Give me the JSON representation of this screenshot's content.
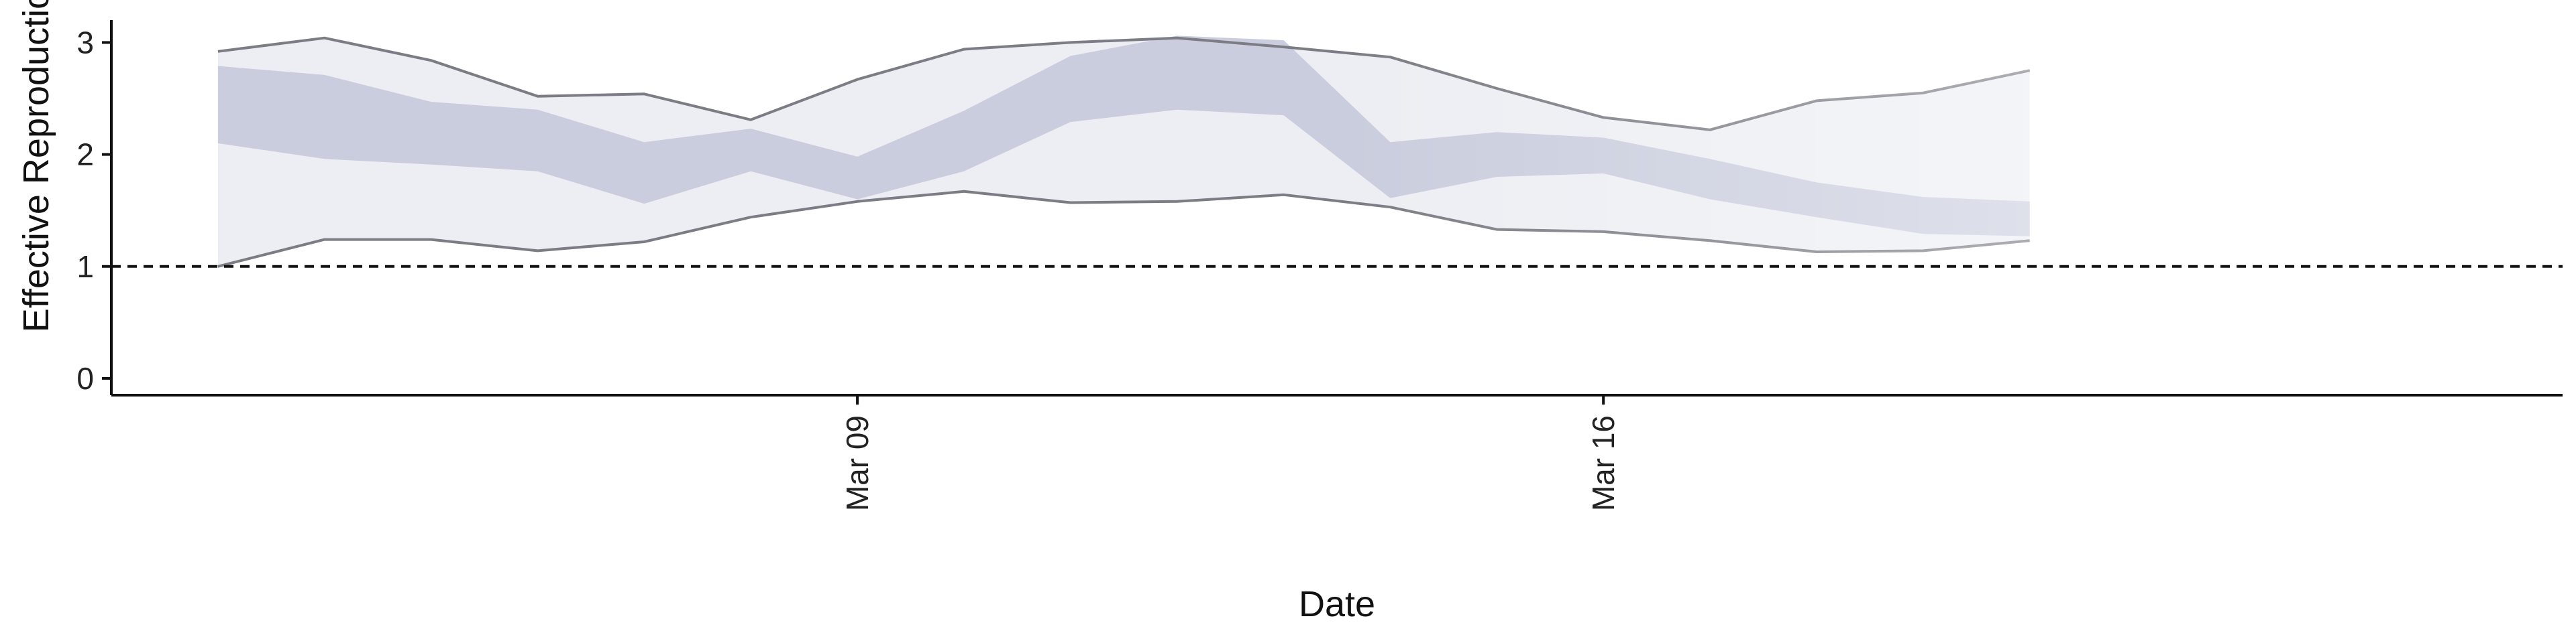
{
  "chart_data": {
    "type": "area",
    "xlabel": "Date",
    "ylabel": "Effective Reproduction no.",
    "ylim": [
      -0.15,
      3.2
    ],
    "y_ticks": [
      0,
      1,
      2,
      3
    ],
    "x_ticks": [
      {
        "date": "2020-03-09",
        "label": "Mar 09"
      },
      {
        "date": "2020-03-16",
        "label": "Mar 16"
      }
    ],
    "xlim": [
      "2020-03-02",
      "2020-03-25"
    ],
    "reference_line": {
      "y": 1,
      "style": "dashed"
    },
    "x": [
      "2020-03-03",
      "2020-03-04",
      "2020-03-05",
      "2020-03-06",
      "2020-03-07",
      "2020-03-08",
      "2020-03-09",
      "2020-03-10",
      "2020-03-11",
      "2020-03-12",
      "2020-03-13",
      "2020-03-14",
      "2020-03-15",
      "2020-03-16",
      "2020-03-17",
      "2020-03-18",
      "2020-03-19",
      "2020-03-20"
    ],
    "series": [
      {
        "type": "interval_90",
        "lower": [
          1.0,
          1.24,
          1.24,
          1.14,
          1.22,
          1.44,
          1.58,
          1.67,
          1.57,
          1.58,
          1.64,
          1.53,
          1.33,
          1.31,
          1.23,
          1.13,
          1.14,
          1.23
        ],
        "upper": [
          2.92,
          3.04,
          2.84,
          2.52,
          2.54,
          2.31,
          2.67,
          2.94,
          3.0,
          3.04,
          2.96,
          2.87,
          2.59,
          2.33,
          2.22,
          2.48,
          2.55,
          2.75
        ],
        "fill": "#eceef3",
        "line": "#7c7c84"
      },
      {
        "type": "interval_50",
        "lower": [
          2.1,
          1.96,
          1.91,
          1.85,
          1.56,
          1.85,
          1.6,
          1.85,
          2.29,
          2.4,
          2.35,
          1.61,
          1.8,
          1.83,
          1.6,
          1.44,
          1.29,
          1.27
        ],
        "upper": [
          2.79,
          2.71,
          2.47,
          2.4,
          2.11,
          2.23,
          1.98,
          2.39,
          2.88,
          3.06,
          3.02,
          2.11,
          2.2,
          2.15,
          1.96,
          1.75,
          1.62,
          1.58
        ],
        "fill": "#c9cddd"
      }
    ],
    "grid": false,
    "legend": "none"
  }
}
